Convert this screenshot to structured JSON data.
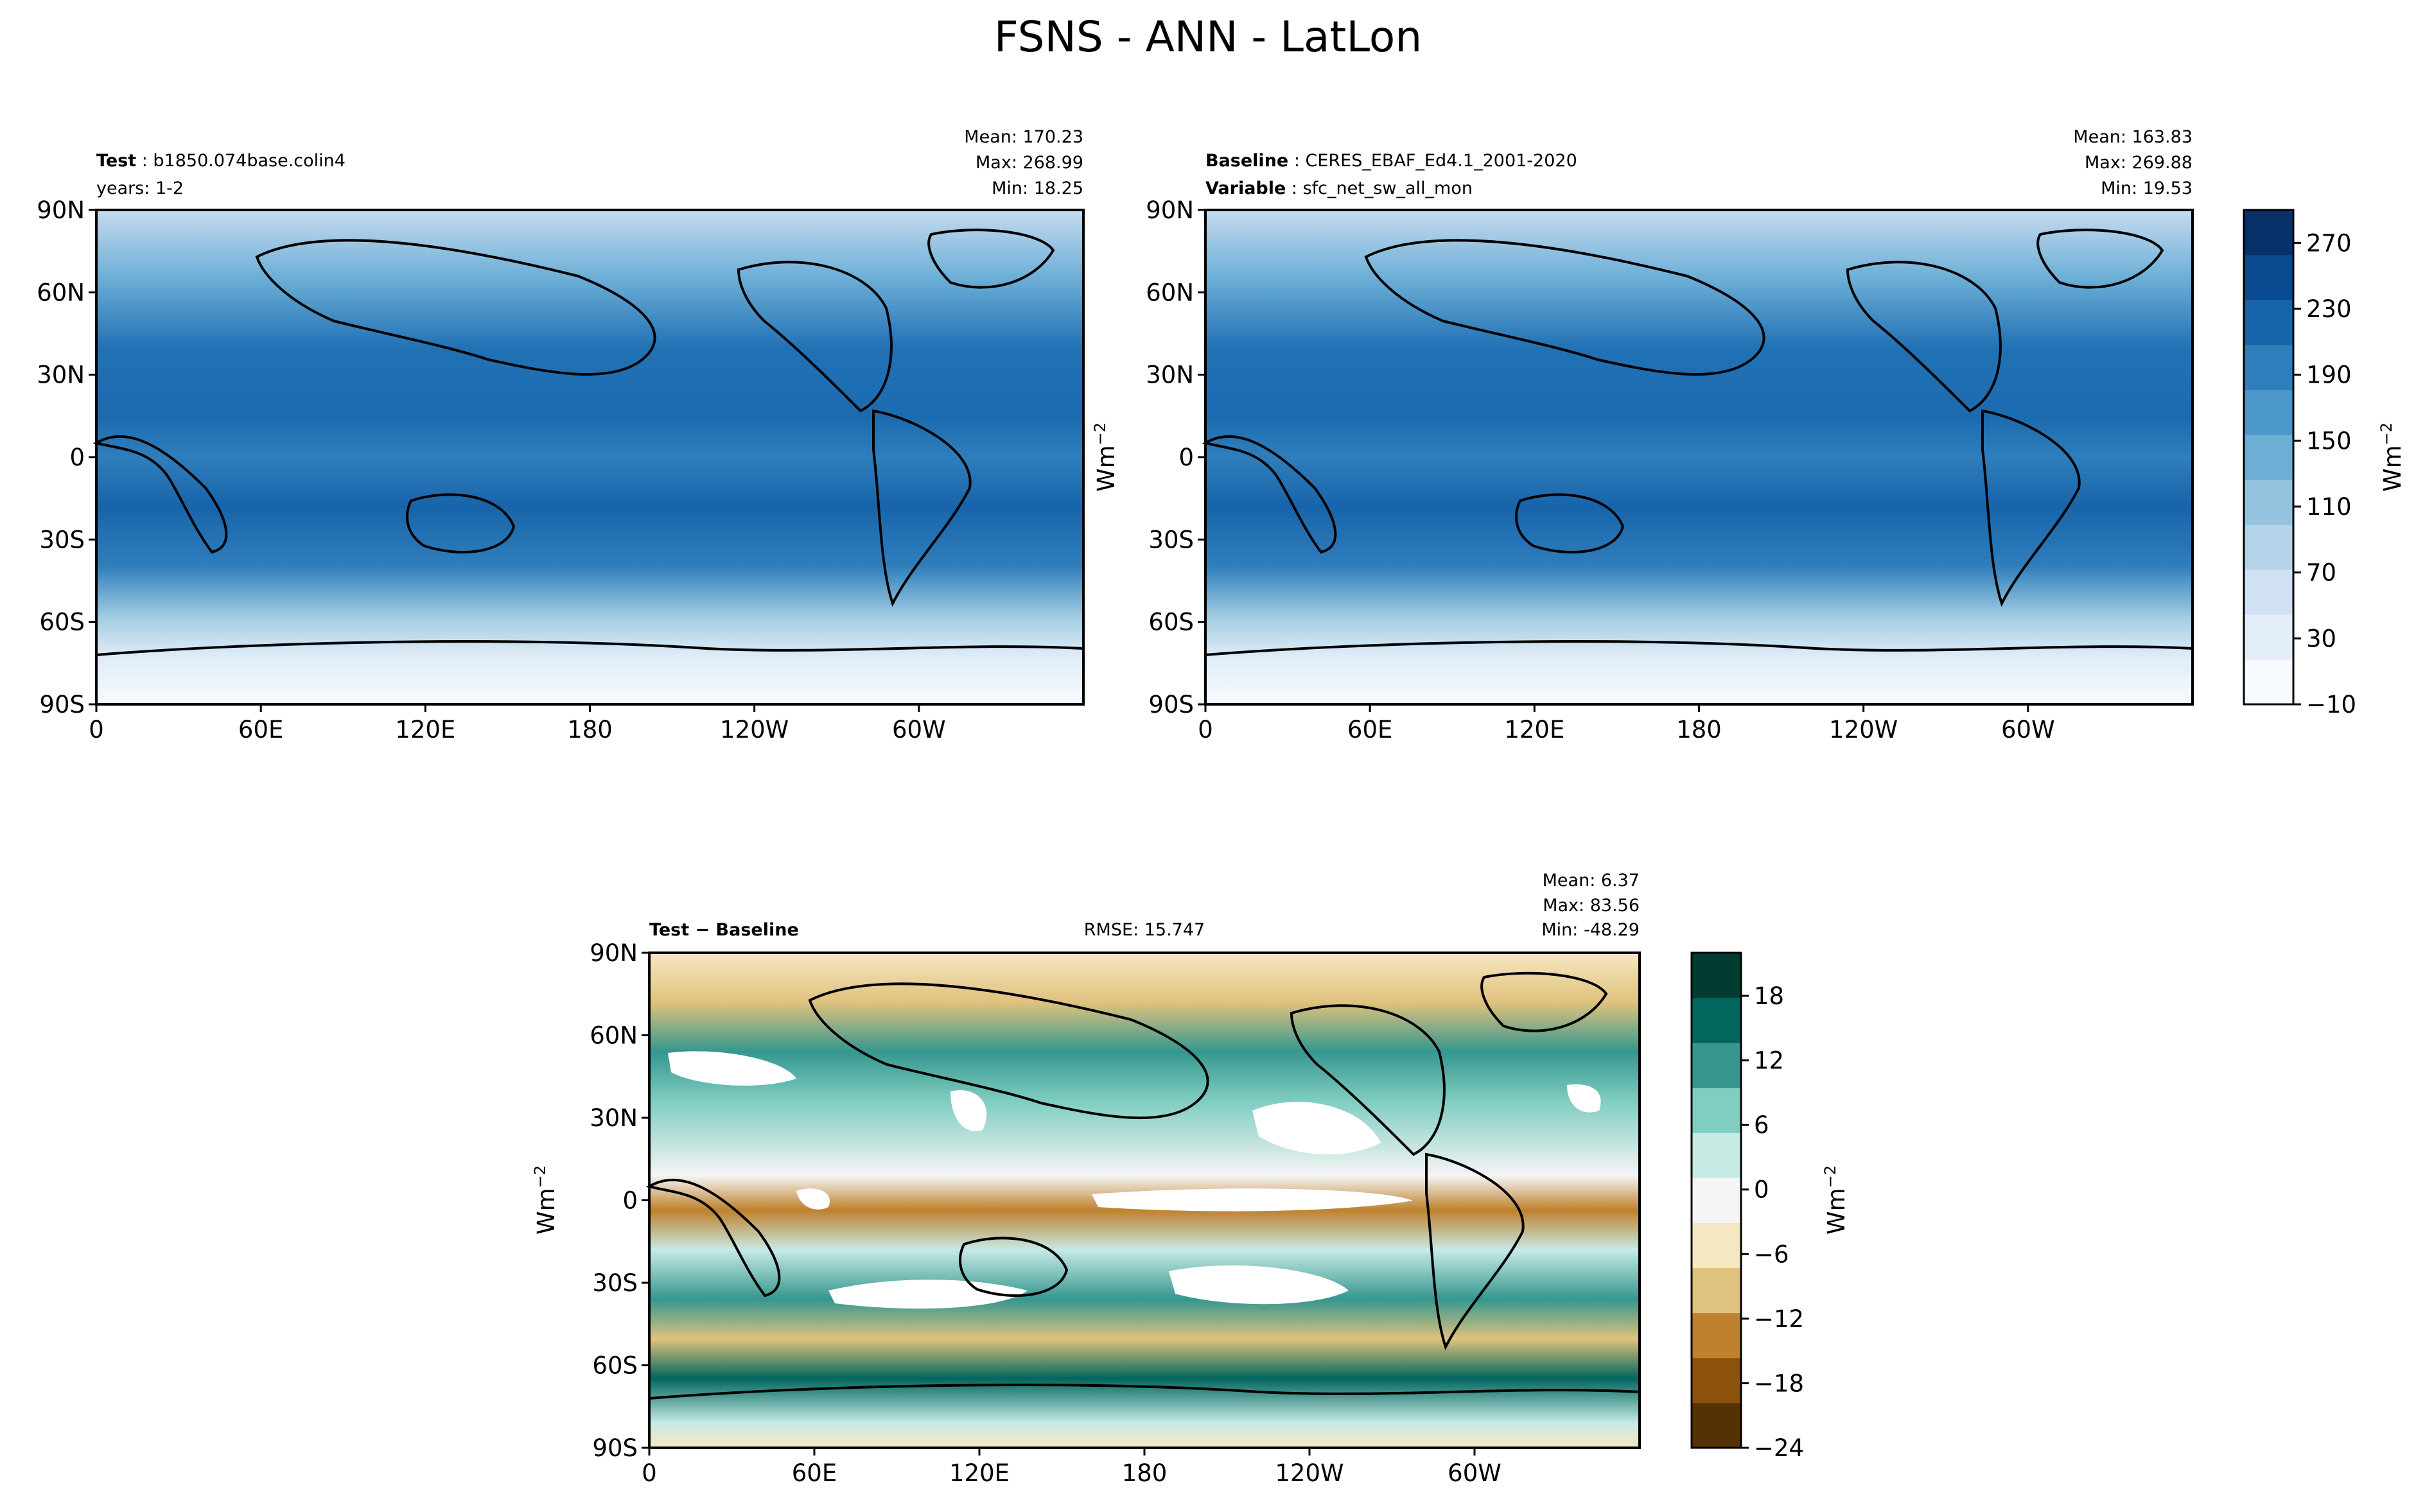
{
  "figure": {
    "title": "FSNS - ANN - LatLon"
  },
  "colors": {
    "blues": [
      "#f7fbff",
      "#e3eef9",
      "#cfe1f2",
      "#b5d4e9",
      "#93c3df",
      "#6daed5",
      "#4b97c9",
      "#2f7ebc",
      "#1864aa",
      "#0a4a90",
      "#08306b"
    ],
    "brbg": [
      "#543005",
      "#8c510a",
      "#bf812d",
      "#dfc27d",
      "#f6e8c3",
      "#f5f5f5",
      "#c7eae5",
      "#80cdc1",
      "#35978f",
      "#01665e",
      "#003c30"
    ]
  },
  "chart_data": [
    {
      "type": "heatmap",
      "panel": "test",
      "title_left_bold": "Test",
      "title_left_value": "b1850.074base.colin4",
      "title_left_line2": "years: 1-2",
      "stats": [
        "Mean: 170.23",
        "Max: 268.99",
        "Min: 18.25"
      ],
      "xticks": [
        "0",
        "60E",
        "120E",
        "180",
        "120W",
        "60W"
      ],
      "yticks": [
        "90N",
        "60N",
        "30N",
        "0",
        "30S",
        "60S",
        "90S"
      ],
      "xlim": [
        0,
        360
      ],
      "ylim": [
        -90,
        90
      ],
      "ylabel": "",
      "colormap": "Blues"
    },
    {
      "type": "heatmap",
      "panel": "baseline",
      "title_left_bold": "Baseline",
      "title_left_value": "CERES_EBAF_Ed4.1_2001-2020",
      "title_left_bold2": "Variable",
      "title_left_value2": "sfc_net_sw_all_mon",
      "stats": [
        "Mean: 163.83",
        "Max: 269.88",
        "Min: 19.53"
      ],
      "xticks": [
        "0",
        "60E",
        "120E",
        "180",
        "120W",
        "60W"
      ],
      "yticks": [
        "90N",
        "60N",
        "30N",
        "0",
        "30S",
        "60S",
        "90S"
      ],
      "xlim": [
        0,
        360
      ],
      "ylim": [
        -90,
        90
      ],
      "ylabel": "Wm",
      "ylabel_sup": "−2",
      "colormap": "Blues",
      "colorbar": {
        "ticks": [
          "270",
          "230",
          "190",
          "150",
          "110",
          "70",
          "30",
          "−10"
        ],
        "range": [
          -10,
          290
        ],
        "label": "Wm",
        "label_sup": "−2"
      }
    },
    {
      "type": "heatmap",
      "panel": "difference",
      "title_left": "Test − Baseline",
      "title_center": "RMSE: 15.747",
      "stats": [
        "Mean:  6.37",
        "Max: 83.56",
        "Min: -48.29"
      ],
      "xticks": [
        "0",
        "60E",
        "120E",
        "180",
        "120W",
        "60W"
      ],
      "yticks": [
        "90N",
        "60N",
        "30N",
        "0",
        "30S",
        "60S",
        "90S"
      ],
      "xlim": [
        0,
        360
      ],
      "ylim": [
        -90,
        90
      ],
      "ylabel": "Wm",
      "ylabel_sup": "−2",
      "colormap": "BrBG",
      "colorbar": {
        "ticks": [
          "18",
          "12",
          "6",
          "0",
          "−6",
          "−12",
          "−18",
          "−24"
        ],
        "range": [
          -24,
          22
        ],
        "label": "Wm",
        "label_sup": "−2"
      }
    }
  ]
}
